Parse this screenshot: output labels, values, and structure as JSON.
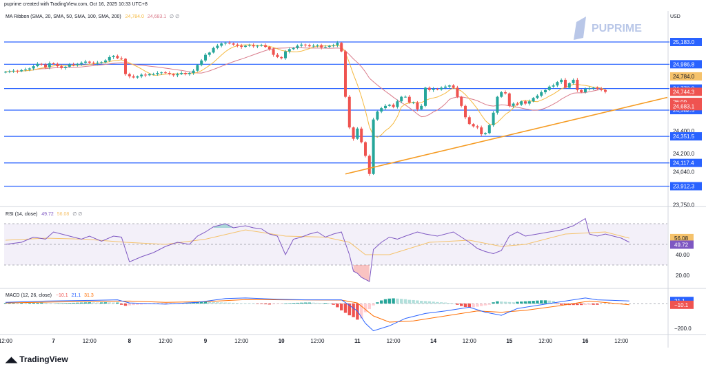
{
  "header": {
    "credit": "puprime created with TradingView.com, Oct 16, 2025 10:33 UTC+8",
    "currency": "USD"
  },
  "watermark": {
    "brand": "PUPRIME"
  },
  "footer": {
    "brand": "TradingView"
  },
  "indicators": {
    "ma_ribbon": {
      "label": "MA Ribbon (SMA, 20, SMA, 50, SMA, 100, SMA, 200)",
      "v1": "24,784.0",
      "v2": "24,683.1",
      "flags": "∅ ∅"
    },
    "rsi": {
      "label": "RSI (14, close)",
      "v1": "49.72",
      "v2": "56.08",
      "flags": "∅ ∅"
    },
    "macd": {
      "label": "MACD (12, 26, close)",
      "v1": "−10.1",
      "v2": "21.1",
      "v3": "31.3"
    }
  },
  "colors": {
    "up": "#26a69a",
    "down": "#ef5350",
    "level": "#2962ff",
    "trend": "#f59b22",
    "ma_fast": "#f5b83d",
    "ma_slow": "#d97a8a",
    "rsi": "#7e57c2",
    "rsi_ma": "#f5c26b",
    "macd": "#2962ff",
    "signal": "#ff6d00",
    "grid": "#e0e3eb",
    "text": "#131722"
  },
  "chart_data": {
    "type": "candlestick",
    "price_axis": {
      "ticks": [
        "24,400.0",
        "24,200.0",
        "24,040.0",
        "23,750.0"
      ],
      "ylim": [
        23720,
        25300
      ]
    },
    "levels": [
      {
        "value": 25183.0,
        "label": "25,183.0"
      },
      {
        "value": 24986.8,
        "label": "24,986.8"
      },
      {
        "value": 24772.8,
        "label": "24,772.8"
      },
      {
        "value": 24582.5,
        "label": "24,582.5"
      },
      {
        "value": 24351.5,
        "label": "24,351.5"
      },
      {
        "value": 24117.4,
        "label": "24,117.4"
      },
      {
        "value": 23912.3,
        "label": "23,912.3"
      }
    ],
    "price_labels": [
      {
        "value": 24880,
        "label": "24,784.0",
        "style": "ma_fast"
      },
      {
        "value": 24744.3,
        "label": "24,744.3",
        "style": "last"
      },
      {
        "value": 24655,
        "label": "26:09",
        "style": "countdown"
      },
      {
        "value": 24617,
        "label": "24,683.1",
        "style": "ma_slow"
      }
    ],
    "trendline": [
      {
        "i": 85,
        "v": 24020
      },
      {
        "i": 159,
        "v": 24640
      }
    ],
    "x_axis": [
      {
        "i": 0,
        "label": "12:00"
      },
      {
        "i": 12,
        "label": "7"
      },
      {
        "i": 21,
        "label": "12:00"
      },
      {
        "i": 31,
        "label": "8"
      },
      {
        "i": 40,
        "label": "12:00"
      },
      {
        "i": 50,
        "label": "9"
      },
      {
        "i": 59,
        "label": "12:00"
      },
      {
        "i": 69,
        "label": "10"
      },
      {
        "i": 78,
        "label": "12:00"
      },
      {
        "i": 88,
        "label": "11"
      },
      {
        "i": 97,
        "label": "12:00"
      },
      {
        "i": 107,
        "label": "14"
      },
      {
        "i": 116,
        "label": "12:00"
      },
      {
        "i": 126,
        "label": "15"
      },
      {
        "i": 135,
        "label": "12:00"
      },
      {
        "i": 145,
        "label": "16"
      },
      {
        "i": 154,
        "label": "12:00"
      }
    ],
    "closes": [
      24920,
      24925,
      24930,
      24925,
      24935,
      24940,
      24950,
      24970,
      24990,
      24985,
      24960,
      24995,
      24990,
      24970,
      24955,
      24965,
      24985,
      24980,
      24990,
      25000,
      25010,
      25000,
      24995,
      25000,
      25005,
      25020,
      25050,
      25060,
      25040,
      25035,
      24900,
      24880,
      24870,
      24880,
      24895,
      24890,
      24900,
      24900,
      24910,
      24915,
      24910,
      24900,
      24890,
      24900,
      24910,
      24900,
      24910,
      24930,
      24980,
      25020,
      25070,
      25090,
      25130,
      25150,
      25170,
      25175,
      25170,
      25160,
      25150,
      25140,
      25150,
      25155,
      25145,
      25150,
      25155,
      25140,
      25120,
      25070,
      25050,
      25040,
      25100,
      25120,
      25130,
      25150,
      25160,
      25155,
      25145,
      25150,
      25155,
      25135,
      25140,
      25150,
      25155,
      25175,
      25100,
      24700,
      24430,
      24330,
      24420,
      24300,
      24180,
      24020,
      24500,
      24570,
      24600,
      24620,
      24630,
      24610,
      24660,
      24700,
      24700,
      24650,
      24650,
      24590,
      24620,
      24780,
      24760,
      24770,
      24765,
      24780,
      24790,
      24800,
      24780,
      24700,
      24620,
      24520,
      24460,
      24440,
      24430,
      24370,
      24380,
      24450,
      24560,
      24700,
      24740,
      24730,
      24620,
      24640,
      24630,
      24660,
      24640,
      24660,
      24690,
      24710,
      24740,
      24760,
      24790,
      24800,
      24830,
      24850,
      24780,
      24820,
      24850,
      24760,
      24740,
      24770,
      24775,
      24780,
      24770,
      24760,
      24744
    ],
    "rsi": {
      "ticks": [
        "40.00",
        "20.00"
      ],
      "ylim": [
        8,
        78
      ],
      "band": [
        30,
        70
      ],
      "current": {
        "rsi": 49.72,
        "ma": 56.08
      },
      "points": [
        [
          0,
          50
        ],
        [
          4,
          52
        ],
        [
          7,
          57
        ],
        [
          10,
          55
        ],
        [
          12,
          62
        ],
        [
          14,
          60
        ],
        [
          17,
          57
        ],
        [
          19,
          55
        ],
        [
          21,
          58
        ],
        [
          24,
          53
        ],
        [
          27,
          58
        ],
        [
          29,
          57
        ],
        [
          31,
          33
        ],
        [
          34,
          38
        ],
        [
          37,
          42
        ],
        [
          40,
          48
        ],
        [
          43,
          52
        ],
        [
          46,
          50
        ],
        [
          48,
          58
        ],
        [
          50,
          62
        ],
        [
          52,
          67
        ],
        [
          55,
          70
        ],
        [
          57,
          66
        ],
        [
          60,
          68
        ],
        [
          62,
          66
        ],
        [
          64,
          65
        ],
        [
          66,
          60
        ],
        [
          68,
          58
        ],
        [
          70,
          40
        ],
        [
          72,
          55
        ],
        [
          74,
          57
        ],
        [
          76,
          60
        ],
        [
          78,
          62
        ],
        [
          80,
          57
        ],
        [
          82,
          60
        ],
        [
          84,
          62
        ],
        [
          86,
          40
        ],
        [
          87,
          24
        ],
        [
          88,
          22
        ],
        [
          89,
          18
        ],
        [
          91,
          14
        ],
        [
          92,
          45
        ],
        [
          94,
          52
        ],
        [
          96,
          57
        ],
        [
          98,
          55
        ],
        [
          100,
          58
        ],
        [
          103,
          62
        ],
        [
          105,
          60
        ],
        [
          108,
          58
        ],
        [
          112,
          62
        ],
        [
          116,
          52
        ],
        [
          118,
          46
        ],
        [
          120,
          43
        ],
        [
          122,
          41
        ],
        [
          124,
          44
        ],
        [
          126,
          58
        ],
        [
          128,
          62
        ],
        [
          130,
          58
        ],
        [
          133,
          60
        ],
        [
          136,
          62
        ],
        [
          139,
          64
        ],
        [
          142,
          68
        ],
        [
          145,
          75
        ],
        [
          146,
          60
        ],
        [
          148,
          58
        ],
        [
          150,
          60
        ],
        [
          152,
          58
        ],
        [
          154,
          56
        ],
        [
          156,
          52
        ]
      ],
      "ma_points": [
        [
          0,
          54
        ],
        [
          10,
          56
        ],
        [
          20,
          55
        ],
        [
          30,
          52
        ],
        [
          40,
          50
        ],
        [
          50,
          55
        ],
        [
          60,
          64
        ],
        [
          70,
          58
        ],
        [
          80,
          57
        ],
        [
          86,
          52
        ],
        [
          90,
          40
        ],
        [
          96,
          40
        ],
        [
          106,
          52
        ],
        [
          116,
          54
        ],
        [
          124,
          48
        ],
        [
          130,
          50
        ],
        [
          140,
          60
        ],
        [
          150,
          62
        ],
        [
          156,
          56
        ]
      ]
    },
    "macd": {
      "ticks": [
        "−200.0"
      ],
      "ylim": [
        -230,
        90
      ],
      "current": {
        "macd": 21.1,
        "signal": -10.1
      },
      "hist": [
        5,
        6,
        7,
        6,
        6,
        5,
        5,
        6,
        6,
        7,
        6,
        4,
        3,
        3,
        3,
        4,
        5,
        6,
        7,
        8,
        9,
        10,
        9,
        8,
        9,
        10,
        9,
        8,
        8,
        -10,
        -18,
        -15,
        -12,
        -10,
        -8,
        -6,
        -5,
        -4,
        -3,
        -2,
        -2,
        -1,
        0,
        2,
        4,
        6,
        8,
        10,
        11,
        12,
        13,
        12,
        11,
        10,
        9,
        8,
        7,
        6,
        5,
        3,
        2,
        1,
        0,
        -2,
        -4,
        -6,
        -8,
        -6,
        -4,
        -2,
        1,
        3,
        5,
        6,
        7,
        8,
        8,
        7,
        6,
        5,
        5,
        4,
        -10,
        -30,
        -55,
        -75,
        -95,
        -110,
        -130,
        -120,
        -70,
        -45,
        -15,
        10,
        25,
        35,
        40,
        42,
        40,
        38,
        35,
        30,
        28,
        25,
        22,
        20,
        18,
        15,
        12,
        10,
        8,
        5,
        0,
        -10,
        -20,
        -28,
        -32,
        -30,
        -25,
        -20,
        -15,
        -10,
        10,
        18,
        16,
        14,
        12,
        10,
        14,
        16,
        18,
        20,
        22,
        24,
        26,
        26,
        24,
        22,
        -5,
        -10,
        -12,
        -12,
        -12,
        -12,
        -12,
        -11,
        -10,
        -10,
        -10
      ],
      "macd": [
        [
          0,
          10
        ],
        [
          10,
          20
        ],
        [
          20,
          25
        ],
        [
          28,
          30
        ],
        [
          31,
          5
        ],
        [
          40,
          -5
        ],
        [
          48,
          10
        ],
        [
          55,
          40
        ],
        [
          60,
          45
        ],
        [
          68,
          35
        ],
        [
          75,
          30
        ],
        [
          84,
          30
        ],
        [
          88,
          -60
        ],
        [
          90,
          -160
        ],
        [
          92,
          -220
        ],
        [
          96,
          -180
        ],
        [
          100,
          -120
        ],
        [
          105,
          -80
        ],
        [
          110,
          -60
        ],
        [
          116,
          -30
        ],
        [
          120,
          -70
        ],
        [
          124,
          -95
        ],
        [
          128,
          -40
        ],
        [
          134,
          -10
        ],
        [
          140,
          20
        ],
        [
          145,
          45
        ],
        [
          148,
          30
        ],
        [
          156,
          21
        ]
      ],
      "signal": [
        [
          0,
          5
        ],
        [
          12,
          12
        ],
        [
          24,
          18
        ],
        [
          31,
          20
        ],
        [
          40,
          10
        ],
        [
          50,
          15
        ],
        [
          60,
          32
        ],
        [
          70,
          30
        ],
        [
          84,
          28
        ],
        [
          88,
          5
        ],
        [
          92,
          -100
        ],
        [
          96,
          -150
        ],
        [
          102,
          -140
        ],
        [
          110,
          -100
        ],
        [
          118,
          -60
        ],
        [
          124,
          -70
        ],
        [
          130,
          -55
        ],
        [
          138,
          -20
        ],
        [
          146,
          20
        ],
        [
          156,
          -10
        ]
      ]
    }
  }
}
